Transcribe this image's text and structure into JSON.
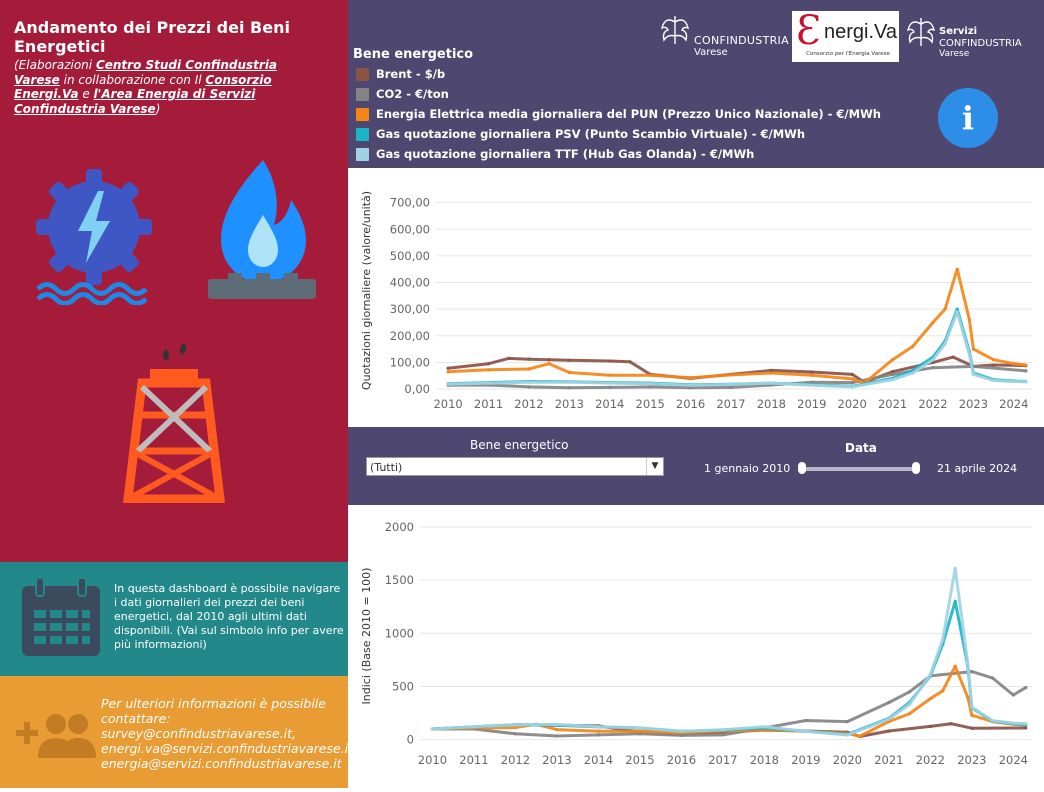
{
  "header": {
    "title": "Andamento dei Prezzi dei Beni Energetici",
    "subtitle_1": "(Elaborazioni ",
    "subtitle_link_1": "Centro Studi Confindustria Varese",
    "subtitle_2": " in collaborazione con Il ",
    "subtitle_link_2": "Consorzio Energi.Va",
    "subtitle_3": " e ",
    "subtitle_link_3": "l'Area Energia di Servizi Confindustria Varese",
    "subtitle_4": ")"
  },
  "logos": {
    "confindustria_name": "CONFINDUSTRIA",
    "confindustria_sub": "Varese",
    "energiva_name": "nergi.Va",
    "energiva_sub": "Consorzio per l'Energia Varese",
    "servizi_1": "Servizi",
    "servizi_2": "CONFINDUSTRIA",
    "servizi_3": "Varese"
  },
  "legend": {
    "title": "Bene energetico",
    "items": [
      {
        "label": "Brent - $/b",
        "color": "#8B5346"
      },
      {
        "label": "CO2 - €/ton",
        "color": "#848484"
      },
      {
        "label": "Energia Elettrica media giornaliera del PUN (Prezzo Unico Nazionale) - €/MWh",
        "color": "#F58518"
      },
      {
        "label": "Gas quotazione giornaliera PSV (Punto Scambio Virtuale) - €/MWh",
        "color": "#1CB5C8"
      },
      {
        "label": "Gas quotazione giornaliera TTF (Hub Gas Olanda) - €/MWh",
        "color": "#9FD3E3"
      }
    ]
  },
  "info_button": {
    "label": "i"
  },
  "filters": {
    "bene_label": "Bene energetico",
    "bene_value": "(Tutti)",
    "date_label": "Data",
    "date_start": "1 gennaio 2010",
    "date_end": "21 aprile 2024"
  },
  "info_text": "In questa dashboard è possibile navigare i dati giornalieri dei prezzi dei beni energetici, dal 2010 agli ultimi dati disponibili. (Vai sul simbolo info per avere più informazioni)",
  "contact": {
    "line1": "Per ulteriori informazioni è possibile contattare:",
    "line2": "survey@confindustriavarese.it,",
    "line3": "energi.va@servizi.confindustriavarese.it,",
    "line4": "energia@servizi.confindustriavarese.it"
  },
  "colors": {
    "left_top": "#A51C3B",
    "left_mid": "#23888A",
    "left_bot": "#E99C34",
    "panel": "#4E4870",
    "info": "#2D8EE8"
  },
  "chart_data": [
    {
      "type": "line",
      "ylabel": "Quotazioni giornaliere (valore/unità)",
      "ylim": [
        0,
        740
      ],
      "yticks": [
        "0,00",
        "100,00",
        "200,00",
        "300,00",
        "400,00",
        "500,00",
        "600,00",
        "700,00"
      ],
      "ytick_values": [
        0,
        100,
        200,
        300,
        400,
        500,
        600,
        700
      ],
      "x": [
        2010,
        2011,
        2012,
        2013,
        2014,
        2015,
        2016,
        2017,
        2018,
        2019,
        2020,
        2021,
        2022,
        2023,
        2024
      ],
      "xticks": [
        "2010",
        "2011",
        "2012",
        "2013",
        "2014",
        "2015",
        "2016",
        "2017",
        "2018",
        "2019",
        "2020",
        "2021",
        "2022",
        "2023",
        "2024"
      ],
      "grid": true,
      "series": [
        {
          "name": "Brent - $/b",
          "color": "#8B5346",
          "x": [
            2010,
            2011,
            2011.5,
            2012,
            2012.5,
            2013,
            2014,
            2014.5,
            2015,
            2016,
            2017,
            2018,
            2019,
            2020,
            2020.3,
            2021,
            2022,
            2022.5,
            2023,
            2023.5,
            2024.3
          ],
          "values": [
            78,
            95,
            115,
            112,
            110,
            108,
            105,
            102,
            55,
            40,
            55,
            70,
            64,
            55,
            25,
            65,
            100,
            120,
            85,
            90,
            88
          ]
        },
        {
          "name": "CO2 - €/ton",
          "color": "#848484",
          "x": [
            2010,
            2011,
            2012,
            2013,
            2014,
            2015,
            2016,
            2017,
            2018,
            2019,
            2020,
            2021,
            2022,
            2023,
            2024.3
          ],
          "values": [
            14,
            15,
            8,
            5,
            6,
            8,
            5,
            6,
            15,
            25,
            24,
            55,
            80,
            85,
            68
          ]
        },
        {
          "name": "Energia Elettrica media giornaliera del PUN (Prezzo Unico Nazionale) - €/MWh",
          "color": "#F58518",
          "x": [
            2010,
            2011,
            2012,
            2012.5,
            2013,
            2014,
            2015,
            2016,
            2017,
            2018,
            2019,
            2020,
            2020.3,
            2021,
            2021.5,
            2022,
            2022.3,
            2022.6,
            2022.9,
            2023,
            2023.5,
            2024,
            2024.3
          ],
          "values": [
            65,
            72,
            75,
            95,
            62,
            52,
            52,
            42,
            53,
            60,
            52,
            38,
            22,
            110,
            160,
            250,
            300,
            450,
            260,
            150,
            110,
            95,
            90
          ]
        },
        {
          "name": "Gas quotazione giornaliera PSV (Punto Scambio Virtuale) - €/MWh",
          "color": "#1CB5C8",
          "x": [
            2010,
            2011,
            2012,
            2013,
            2014,
            2015,
            2016,
            2017,
            2018,
            2019,
            2020,
            2021,
            2021.5,
            2022,
            2022.3,
            2022.6,
            2022.9,
            2023,
            2023.5,
            2024,
            2024.3
          ],
          "values": [
            20,
            24,
            28,
            27,
            24,
            22,
            16,
            18,
            22,
            16,
            10,
            40,
            70,
            120,
            180,
            300,
            140,
            60,
            35,
            30,
            28
          ]
        },
        {
          "name": "Gas quotazione giornaliera TTF (Hub Gas Olanda) - €/MWh",
          "color": "#9FD3E3",
          "x": [
            2010,
            2011,
            2012,
            2013,
            2014,
            2015,
            2016,
            2017,
            2018,
            2019,
            2020,
            2021,
            2021.5,
            2022,
            2022.3,
            2022.6,
            2022.9,
            2023,
            2023.5,
            2024,
            2024.3
          ],
          "values": [
            18,
            22,
            25,
            26,
            22,
            20,
            14,
            17,
            22,
            14,
            8,
            35,
            60,
            110,
            170,
            290,
            130,
            55,
            32,
            28,
            27
          ]
        }
      ]
    },
    {
      "type": "line",
      "ylabel": "Indici (Base 2010 = 100)",
      "ylim": [
        -50,
        2000
      ],
      "yticks": [
        "0",
        "500",
        "1000",
        "1500",
        "2000"
      ],
      "ytick_values": [
        0,
        500,
        1000,
        1500,
        2000
      ],
      "x": [
        2010,
        2011,
        2012,
        2013,
        2014,
        2015,
        2016,
        2017,
        2018,
        2019,
        2020,
        2021,
        2022,
        2023,
        2024
      ],
      "xticks": [
        "2010",
        "2011",
        "2012",
        "2013",
        "2014",
        "2015",
        "2016",
        "2017",
        "2018",
        "2019",
        "2020",
        "2021",
        "2022",
        "2023",
        "2024"
      ],
      "grid": true,
      "series": [
        {
          "name": "Brent - $/b",
          "color": "#8B5346",
          "x": [
            2010,
            2011,
            2012,
            2013,
            2014,
            2015,
            2016,
            2017,
            2018,
            2019,
            2020,
            2020.3,
            2021,
            2022,
            2022.5,
            2023,
            2024.3
          ],
          "values": [
            100,
            120,
            140,
            135,
            130,
            70,
            50,
            70,
            90,
            82,
            70,
            30,
            82,
            125,
            150,
            108,
            110
          ]
        },
        {
          "name": "CO2 - €/ton",
          "color": "#848484",
          "x": [
            2010,
            2011,
            2012,
            2013,
            2014,
            2015,
            2016,
            2017,
            2018,
            2019,
            2020,
            2021,
            2021.5,
            2022,
            2022.5,
            2023,
            2023.5,
            2024,
            2024.3
          ],
          "values": [
            100,
            100,
            55,
            35,
            45,
            55,
            40,
            45,
            110,
            180,
            170,
            350,
            450,
            600,
            620,
            640,
            580,
            420,
            490
          ]
        },
        {
          "name": "Energia Elettrica media giornaliera del PUN (Prezzo Unico Nazionale) - €/MWh",
          "color": "#F58518",
          "x": [
            2010,
            2011,
            2012,
            2012.5,
            2013,
            2014,
            2015,
            2016,
            2017,
            2018,
            2019,
            2020,
            2020.3,
            2021,
            2021.5,
            2022,
            2022.3,
            2022.6,
            2022.9,
            2023,
            2023.5,
            2024,
            2024.3
          ],
          "values": [
            100,
            110,
            115,
            145,
            95,
            80,
            80,
            65,
            82,
            92,
            80,
            58,
            34,
            170,
            245,
            385,
            460,
            690,
            400,
            230,
            170,
            146,
            138
          ]
        },
        {
          "name": "Gas quotazione giornaliera PSV (Punto Scambio Virtuale) - €/MWh",
          "color": "#1CB5C8",
          "x": [
            2010,
            2011,
            2012,
            2013,
            2014,
            2015,
            2016,
            2017,
            2018,
            2019,
            2020,
            2021,
            2021.5,
            2022,
            2022.3,
            2022.6,
            2022.9,
            2023,
            2023.5,
            2024,
            2024.3
          ],
          "values": [
            100,
            120,
            140,
            135,
            120,
            110,
            80,
            90,
            110,
            80,
            50,
            200,
            350,
            600,
            900,
            1300,
            700,
            300,
            175,
            150,
            140
          ]
        },
        {
          "name": "Gas quotazione giornaliera TTF (Hub Gas Olanda) - €/MWh",
          "color": "#9FD3E3",
          "x": [
            2010,
            2011,
            2012,
            2013,
            2014,
            2015,
            2016,
            2017,
            2018,
            2019,
            2020,
            2021,
            2021.5,
            2022,
            2022.3,
            2022.6,
            2022.9,
            2023,
            2023.5,
            2024,
            2024.3
          ],
          "values": [
            100,
            122,
            139,
            144,
            122,
            111,
            78,
            94,
            122,
            78,
            44,
            194,
            333,
            611,
            944,
            1611,
            722,
            306,
            178,
            156,
            150
          ]
        }
      ]
    }
  ]
}
